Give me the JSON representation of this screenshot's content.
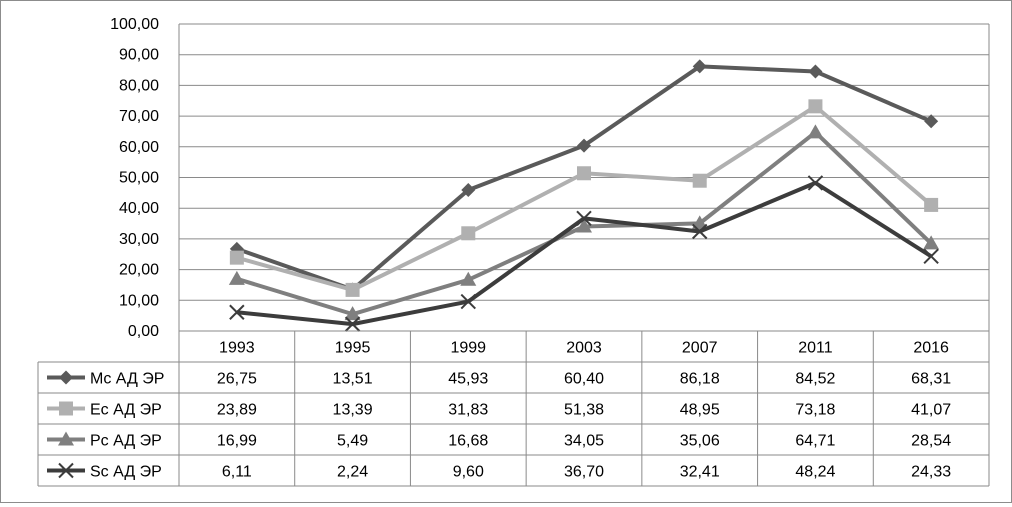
{
  "chart_data": {
    "type": "line",
    "title": "",
    "xlabel": "",
    "ylabel": "",
    "ylim": [
      0,
      100
    ],
    "y_ticks": [
      "0,00",
      "10,00",
      "20,00",
      "30,00",
      "40,00",
      "50,00",
      "60,00",
      "70,00",
      "80,00",
      "90,00",
      "100,00"
    ],
    "grid": true,
    "legend": "data-table-left",
    "categories": [
      "1993",
      "1995",
      "1999",
      "2003",
      "2007",
      "2011",
      "2016"
    ],
    "series": [
      {
        "name": "Mc АД ЭР",
        "marker": "diamond",
        "color": "#5a5a5a",
        "values": [
          26.75,
          13.51,
          45.93,
          60.4,
          86.18,
          84.52,
          68.31
        ],
        "labels": [
          "26,75",
          "13,51",
          "45,93",
          "60,40",
          "86,18",
          "84,52",
          "68,31"
        ]
      },
      {
        "name": "Ec АД ЭР",
        "marker": "square",
        "color": "#b0b0b0",
        "values": [
          23.89,
          13.39,
          31.83,
          51.38,
          48.95,
          73.18,
          41.07
        ],
        "labels": [
          "23,89",
          "13,39",
          "31,83",
          "51,38",
          "48,95",
          "73,18",
          "41,07"
        ]
      },
      {
        "name": "Pc АД ЭР",
        "marker": "triangle",
        "color": "#7f7f7f",
        "values": [
          16.99,
          5.49,
          16.68,
          34.05,
          35.06,
          64.71,
          28.54
        ],
        "labels": [
          "16,99",
          "5,49",
          "16,68",
          "34,05",
          "35,06",
          "64,71",
          "28,54"
        ]
      },
      {
        "name": "Sc АД ЭР",
        "marker": "x",
        "color": "#3c3c3c",
        "values": [
          6.11,
          2.24,
          9.6,
          36.7,
          32.41,
          48.24,
          24.33
        ],
        "labels": [
          "6,11",
          "2,24",
          "9,60",
          "36,70",
          "32,41",
          "48,24",
          "24,33"
        ]
      }
    ]
  }
}
